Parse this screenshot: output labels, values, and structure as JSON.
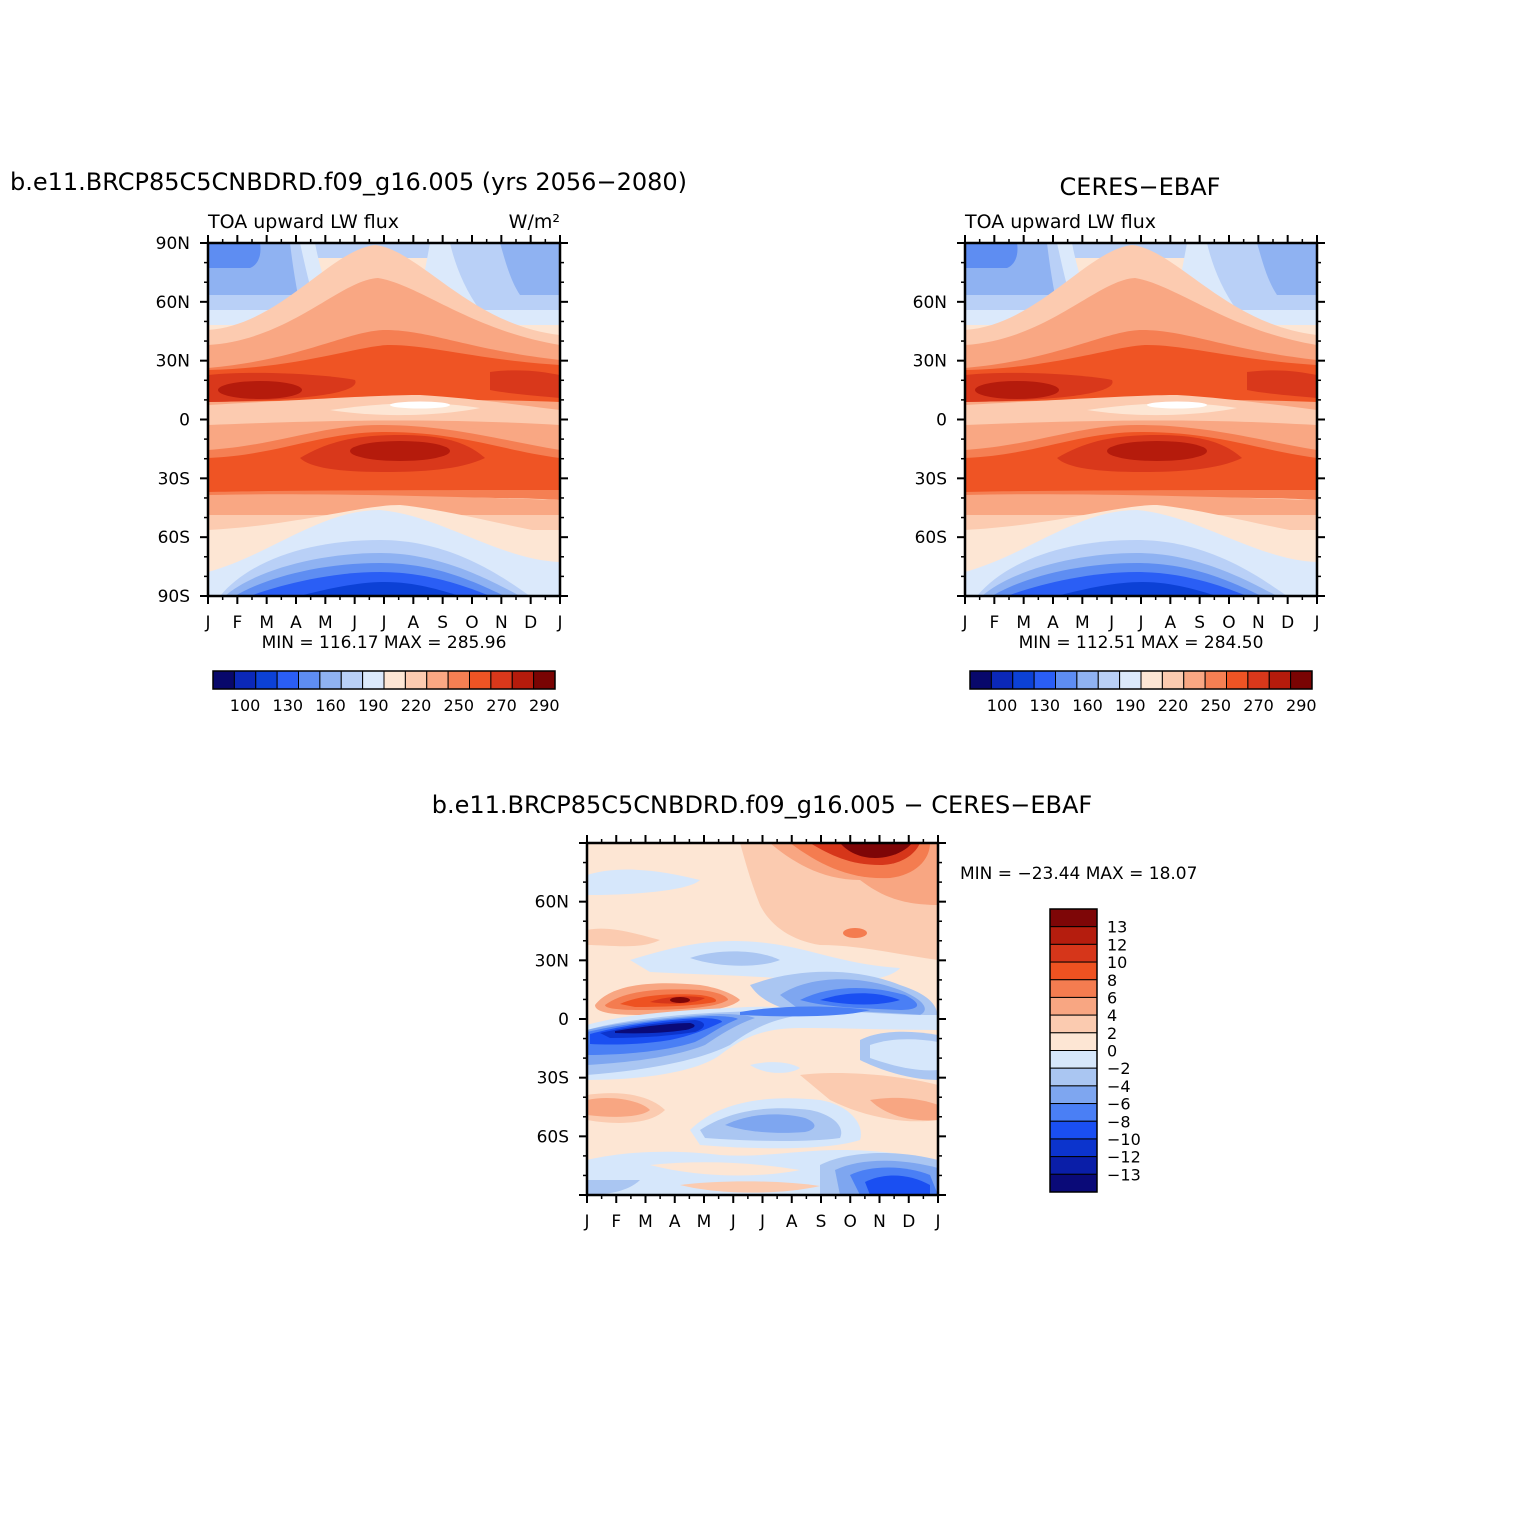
{
  "palette": {
    "abs": [
      "#08086b",
      "#0b28b8",
      "#0c41d6",
      "#2a5ef5",
      "#5e8df2",
      "#8fb2f2",
      "#b9d0f7",
      "#dbe9fb",
      "#fde6d4",
      "#fccbb0",
      "#f9a783",
      "#f57f53",
      "#ef5424",
      "#d9381b",
      "#b51b0c",
      "#7a0403"
    ],
    "diff": [
      "#0a0a78",
      "#0a1ea8",
      "#0c34cd",
      "#1a4ff2",
      "#4a7ff5",
      "#7ea6f0",
      "#aac6f2",
      "#d6e7fb",
      "#fde6d4",
      "#fbcbb0",
      "#f8a682",
      "#f47c50",
      "#ee5221",
      "#d6361a",
      "#b51d0e",
      "#7e0607"
    ]
  },
  "chart_data": [
    {
      "type": "heatmap",
      "title": "b.e11.BRCP85C5CNBDRD.f09_g16.005 (yrs 2056−2080)",
      "subtitle_left": "TOA upward LW flux",
      "subtitle_right": "W/m²",
      "x_ticks": [
        "J",
        "F",
        "M",
        "A",
        "M",
        "J",
        "J",
        "A",
        "S",
        "O",
        "N",
        "D",
        "J"
      ],
      "y_ticks": [
        "90N",
        "60N",
        "30N",
        "0",
        "30S",
        "60S",
        "90S"
      ],
      "stats": "MIN = 116.17 MAX = 285.96",
      "min": 116.17,
      "max": 285.96,
      "colorbar_labels": [
        "100",
        "130",
        "160",
        "190",
        "220",
        "250",
        "270",
        "290"
      ]
    },
    {
      "type": "heatmap",
      "title": "CERES−EBAF",
      "subtitle_left": "TOA upward LW flux",
      "subtitle_right": "",
      "x_ticks": [
        "J",
        "F",
        "M",
        "A",
        "M",
        "J",
        "J",
        "A",
        "S",
        "O",
        "N",
        "D",
        "J"
      ],
      "y_ticks": [
        "",
        "60N",
        "30N",
        "0",
        "30S",
        "60S",
        ""
      ],
      "stats": "MIN = 112.51 MAX = 284.50",
      "min": 112.51,
      "max": 284.5,
      "colorbar_labels": [
        "100",
        "130",
        "160",
        "190",
        "220",
        "250",
        "270",
        "290"
      ]
    },
    {
      "type": "heatmap",
      "title": "b.e11.BRCP85C5CNBDRD.f09_g16.005 − CERES−EBAF",
      "x_ticks": [
        "J",
        "F",
        "M",
        "A",
        "M",
        "J",
        "J",
        "A",
        "S",
        "O",
        "N",
        "D",
        "J"
      ],
      "y_ticks": [
        "",
        "60N",
        "30N",
        "0",
        "30S",
        "60S",
        ""
      ],
      "stats": "MIN = −23.44 MAX =   18.07",
      "min": -23.44,
      "max": 18.07,
      "colorbar_labels": [
        "13",
        "12",
        "10",
        "8",
        "6",
        "4",
        "2",
        "0",
        "−2",
        "−4",
        "−6",
        "−8",
        "−10",
        "−12",
        "−13"
      ]
    }
  ]
}
